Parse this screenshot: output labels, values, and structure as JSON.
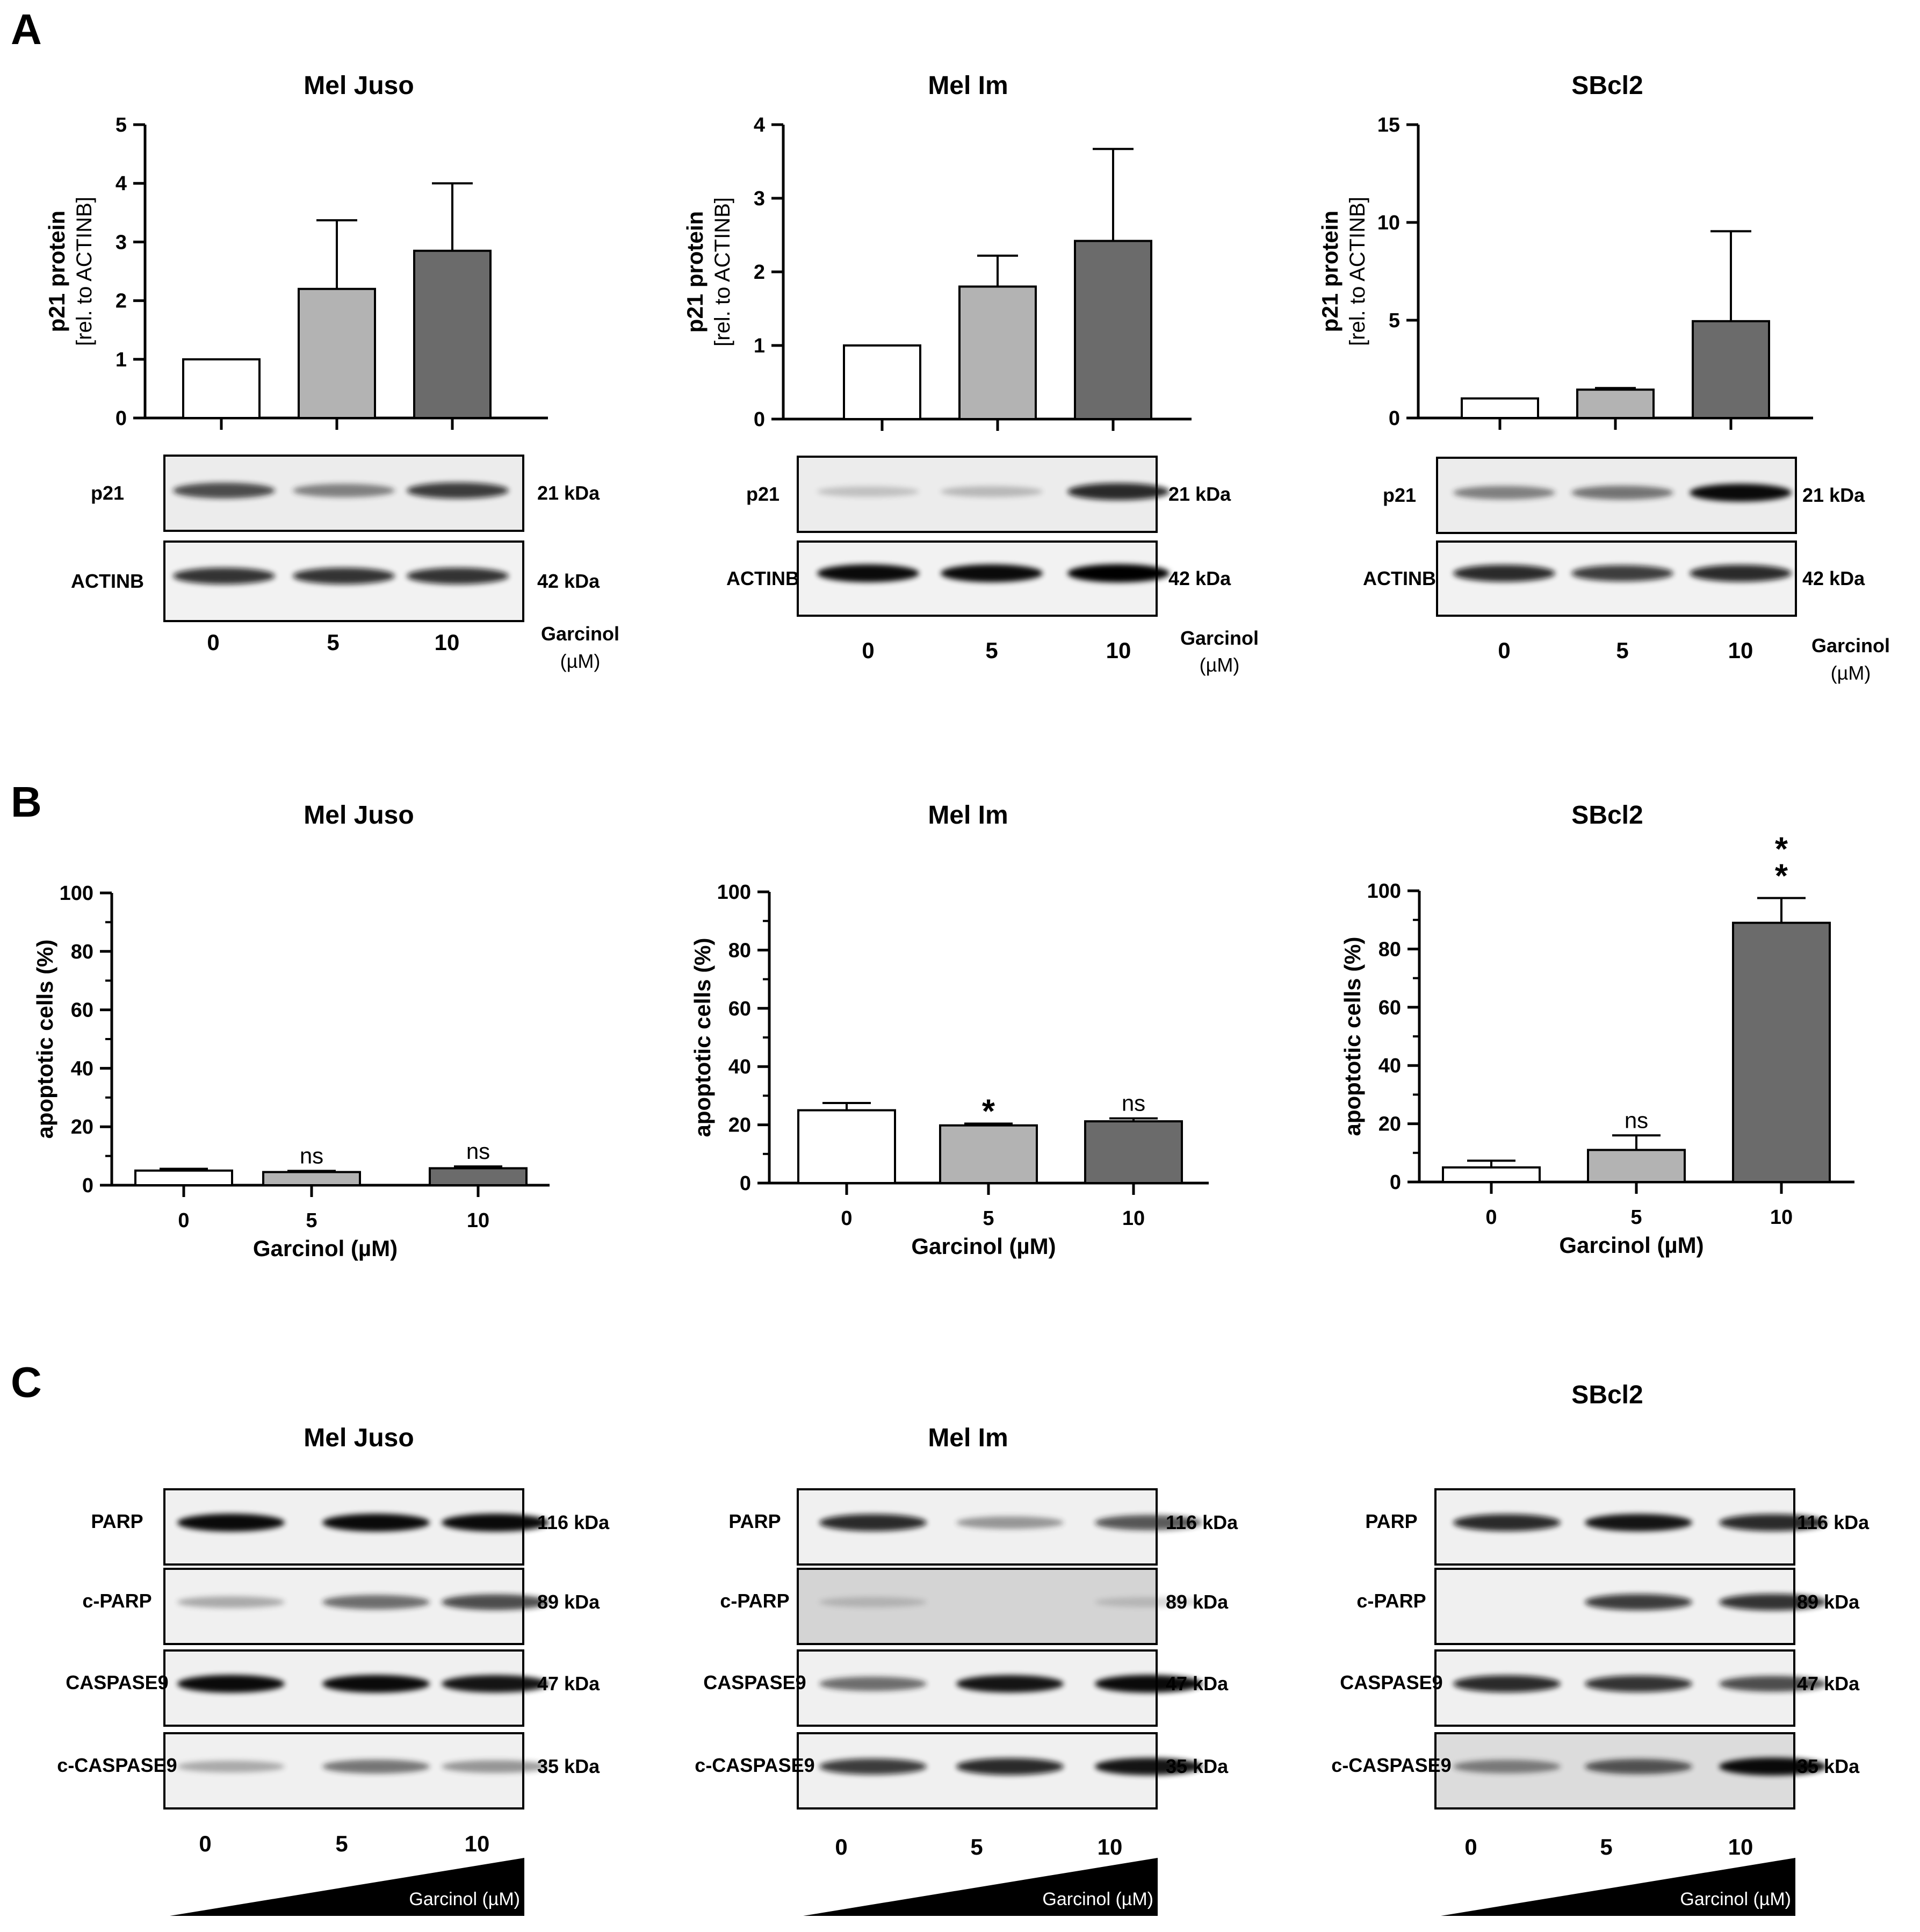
{
  "panel_letters": [
    "A",
    "B",
    "C"
  ],
  "cell_lines": [
    "Mel Juso",
    "Mel Im",
    "SBcl2"
  ],
  "doses": [
    "0",
    "5",
    "10"
  ],
  "treatment": {
    "label": "Garcinol",
    "unit": "(µM)",
    "axis_label": "Garcinol (µM)"
  },
  "colors": {
    "dose0": "#ffffff",
    "dose5": "#b3b3b3",
    "dose10": "#6b6b6b",
    "stroke": "#000000"
  },
  "chart_data": [
    {
      "panel": "A",
      "type": "bar",
      "title": "Mel Juso",
      "categories": [
        "0",
        "5",
        "10"
      ],
      "values": [
        1.0,
        2.2,
        2.85
      ],
      "errors": [
        0,
        1.17,
        1.15
      ],
      "ylim": [
        0,
        5
      ],
      "yticks": [
        0,
        1,
        2,
        3,
        4,
        5
      ],
      "ylabel": "p21 protein",
      "ylabel2": "[rel. to ACTINB]",
      "xlabel": "",
      "annotations": [
        "",
        "",
        ""
      ]
    },
    {
      "panel": "A",
      "type": "bar",
      "title": "Mel Im",
      "categories": [
        "0",
        "5",
        "10"
      ],
      "values": [
        1.0,
        1.8,
        2.42
      ],
      "errors": [
        0,
        0.42,
        1.25
      ],
      "ylim": [
        0,
        4
      ],
      "yticks": [
        0,
        1,
        2,
        3,
        4
      ],
      "ylabel": "p21 protein",
      "ylabel2": "[rel. to ACTINB]",
      "xlabel": "",
      "annotations": [
        "",
        "",
        ""
      ]
    },
    {
      "panel": "A",
      "type": "bar",
      "title": "SBcl2",
      "categories": [
        "0",
        "5",
        "10"
      ],
      "values": [
        1.0,
        1.45,
        4.95
      ],
      "errors": [
        0,
        0.08,
        4.6
      ],
      "ylim": [
        0,
        15
      ],
      "yticks": [
        0,
        5,
        10,
        15
      ],
      "ylabel": "p21 protein",
      "ylabel2": "[rel. to ACTINB]",
      "xlabel": "",
      "annotations": [
        "",
        "",
        ""
      ]
    },
    {
      "panel": "B",
      "type": "bar",
      "title": "Mel Juso",
      "categories": [
        "0",
        "5",
        "10"
      ],
      "values": [
        5.0,
        4.5,
        5.8
      ],
      "errors": [
        0.6,
        0.4,
        0.6
      ],
      "ylim": [
        0,
        100
      ],
      "yticks": [
        0,
        20,
        40,
        60,
        80,
        100
      ],
      "ylabel": "apoptotic cells (%)",
      "ylabel2": "",
      "xlabel": "Garcinol (µM)",
      "annotations": [
        "",
        "ns",
        "ns"
      ]
    },
    {
      "panel": "B",
      "type": "bar",
      "title": "Mel Im",
      "categories": [
        "0",
        "5",
        "10"
      ],
      "values": [
        25.0,
        19.8,
        21.2
      ],
      "errors": [
        2.5,
        0.6,
        1.0
      ],
      "ylim": [
        0,
        100
      ],
      "yticks": [
        0,
        20,
        40,
        60,
        80,
        100
      ],
      "ylabel": "apoptotic cells (%)",
      "ylabel2": "",
      "xlabel": "Garcinol (µM)",
      "annotations": [
        "",
        "*",
        "ns"
      ]
    },
    {
      "panel": "B",
      "type": "bar",
      "title": "SBcl2",
      "categories": [
        "0",
        "5",
        "10"
      ],
      "values": [
        5.0,
        11.0,
        89.0
      ],
      "errors": [
        2.3,
        5.0,
        8.5
      ],
      "ylim": [
        0,
        100
      ],
      "yticks": [
        0,
        20,
        40,
        60,
        80,
        100
      ],
      "ylabel": "apoptotic cells (%)",
      "ylabel2": "",
      "xlabel": "Garcinol (µM)",
      "annotations": [
        "",
        "ns",
        "**"
      ]
    }
  ],
  "blots_A": [
    {
      "rows": [
        {
          "label": "p21",
          "kda": "21 kDa",
          "intensity": [
            0.7,
            0.45,
            0.75
          ]
        },
        {
          "label": "ACTINB",
          "kda": "42 kDa",
          "intensity": [
            0.8,
            0.8,
            0.8
          ]
        }
      ]
    },
    {
      "rows": [
        {
          "label": "p21",
          "kda": "21 kDa",
          "intensity": [
            0.1,
            0.15,
            0.85
          ]
        },
        {
          "label": "ACTINB",
          "kda": "42 kDa",
          "intensity": [
            0.95,
            0.95,
            1.0
          ]
        }
      ]
    },
    {
      "rows": [
        {
          "label": "p21",
          "kda": "21 kDa",
          "intensity": [
            0.45,
            0.5,
            0.95
          ]
        },
        {
          "label": "ACTINB",
          "kda": "42 kDa",
          "intensity": [
            0.85,
            0.75,
            0.85
          ]
        }
      ]
    }
  ],
  "blots_C": [
    {
      "rows": [
        {
          "label": "PARP",
          "kda": "116 kDa",
          "intensity": [
            0.95,
            0.95,
            0.95
          ]
        },
        {
          "label": "c-PARP",
          "kda": "89 kDa",
          "intensity": [
            0.25,
            0.55,
            0.7
          ]
        },
        {
          "label": "CASPASE9",
          "kda": "47 kDa",
          "intensity": [
            0.95,
            0.95,
            0.9
          ]
        },
        {
          "label": "c-CASPASE9",
          "kda": "35 kDa",
          "intensity": [
            0.25,
            0.5,
            0.35
          ]
        }
      ]
    },
    {
      "rows": [
        {
          "label": "PARP",
          "kda": "116 kDa",
          "intensity": [
            0.85,
            0.35,
            0.65
          ]
        },
        {
          "label": "c-PARP",
          "kda": "89 kDa",
          "intensity": [
            0.08,
            0.0,
            0.05
          ]
        },
        {
          "label": "CASPASE9",
          "kda": "47 kDa",
          "intensity": [
            0.55,
            0.9,
            0.95
          ]
        },
        {
          "label": "c-CASPASE9",
          "kda": "35 kDa",
          "intensity": [
            0.75,
            0.85,
            0.9
          ]
        }
      ]
    },
    {
      "rows": [
        {
          "label": "PARP",
          "kda": "116 kDa",
          "intensity": [
            0.85,
            0.9,
            0.85
          ]
        },
        {
          "label": "c-PARP",
          "kda": "89 kDa",
          "intensity": [
            0.0,
            0.75,
            0.8
          ]
        },
        {
          "label": "CASPASE9",
          "kda": "47 kDa",
          "intensity": [
            0.85,
            0.8,
            0.7
          ]
        },
        {
          "label": "c-CASPASE9",
          "kda": "35 kDa",
          "intensity": [
            0.45,
            0.65,
            0.95
          ]
        }
      ]
    }
  ]
}
